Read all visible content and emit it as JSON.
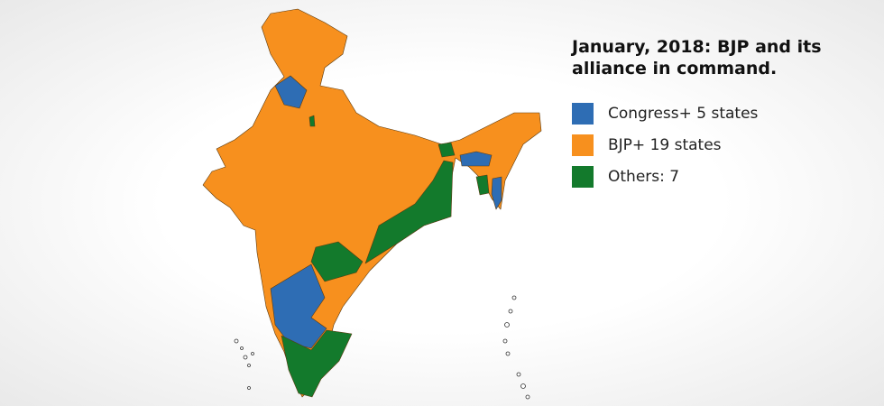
{
  "title": "January, 2018: BJP and its alliance in command.",
  "legend": [
    {
      "label": "Congress+ 5 states",
      "color": "#2e6db4"
    },
    {
      "label": "BJP+ 19 states",
      "color": "#f7901e"
    },
    {
      "label": "Others: 7",
      "color": "#137a2c"
    }
  ]
}
